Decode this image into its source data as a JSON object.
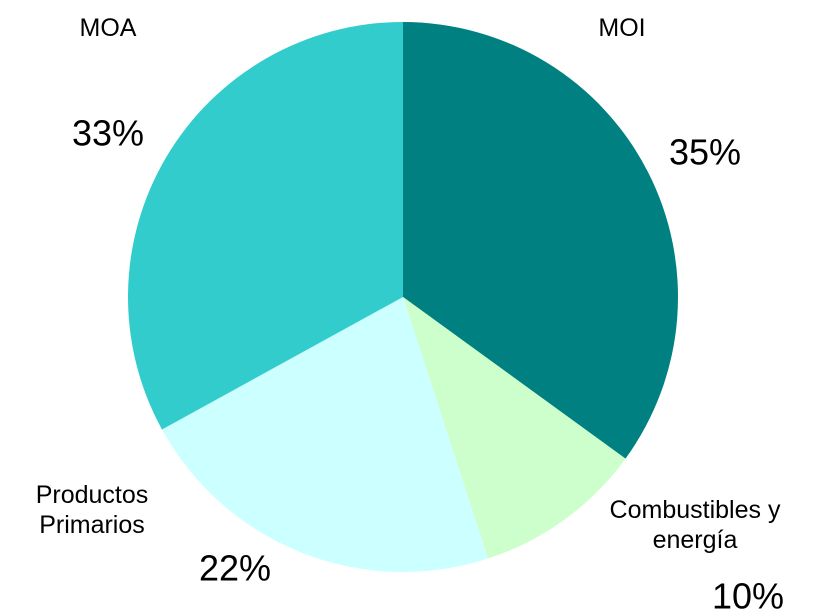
{
  "chart_data": {
    "type": "pie",
    "categories": [
      "MOI",
      "Combustibles y energía",
      "Productos Primarios",
      "MOA"
    ],
    "values": [
      35,
      10,
      22,
      33
    ],
    "value_labels": [
      "35%",
      "10%",
      "22%",
      "33%"
    ],
    "colors": [
      "#008080",
      "#ccffcc",
      "#ccffff",
      "#33cccc"
    ]
  }
}
